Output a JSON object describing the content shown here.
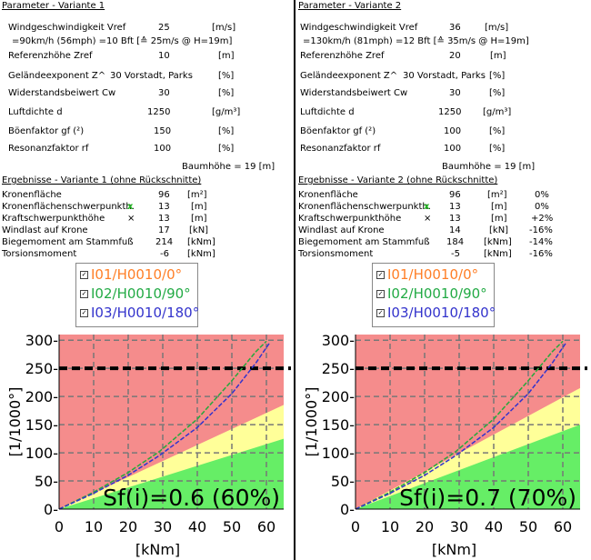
{
  "panels": [
    {
      "param_title": "Parameter - Variante 1",
      "wind_label": "Windgeschwindigkeit  Vref",
      "wind_value": "25",
      "wind_unit": "[m/s]",
      "wind_note": "=90km/h (56mph) =10 Bft [≙ 25m/s @ H=19m]",
      "ref_label": "Referenzhöhe  Zref",
      "ref_value": "10",
      "ref_unit": "[m]",
      "gelaende_label": "Geländeexponent  Z^",
      "gelaende_value": "30 Vorstadt, Parks",
      "gelaende_unit": "[%]",
      "cw_label": "Widerstandsbeiwert  Cw",
      "cw_value": "30",
      "cw_unit": "[%]",
      "luft_label": "Luftdichte  d",
      "luft_value": "1250",
      "luft_unit": "[g/m³]",
      "boe_label": "Böenfaktor  gf (²)",
      "boe_value": "150",
      "boe_unit": "[%]",
      "res_label": "Resonanzfaktor  rf",
      "res_value": "100",
      "res_unit": "[%]",
      "baumhoehe": "Baumhöhe = 19 [m]",
      "res_title": "Ergebnisse - Variante 1 (ohne Rückschnitte)",
      "results": [
        {
          "label": "Kronenfläche",
          "mark": "",
          "value": "96",
          "unit": "[m²]",
          "pct": ""
        },
        {
          "label": "Kronenflächenschwerpunkth.",
          "mark": "x",
          "value": "13",
          "unit": "[m]",
          "pct": ""
        },
        {
          "label": "Kraftschwerpunkthöhe",
          "mark": "⨯",
          "value": "13",
          "unit": "[m]",
          "pct": ""
        },
        {
          "label": "Windlast auf Krone",
          "mark": "",
          "value": "17",
          "unit": "[kN]",
          "pct": ""
        },
        {
          "label": "Biegemoment am Stammfuß",
          "mark": "",
          "value": "214",
          "unit": "[kNm]",
          "pct": ""
        },
        {
          "label": "Torsionsmoment",
          "mark": "",
          "value": "-6",
          "unit": "[kNm]",
          "pct": ""
        }
      ],
      "legend": [
        {
          "check": "✓",
          "label": "I01/H0010/0°",
          "color": "#ff7f27"
        },
        {
          "check": "✓",
          "label": "I02/H0010/90°",
          "color": "#22aa44"
        },
        {
          "check": "✓",
          "label": "I03/H0010/180°",
          "color": "#3333cc"
        }
      ],
      "chart_data": {
        "type": "line",
        "xlabel": "[kNm]",
        "ylabel": "[1/1000°]",
        "xlim": [
          0,
          65
        ],
        "ylim": [
          0,
          310
        ],
        "x_ticks": [
          "0",
          "10",
          "20",
          "30",
          "40",
          "50",
          "60"
        ],
        "y_ticks": [
          "0-",
          "50-",
          "100-",
          "150-",
          "200-",
          "250-",
          "300-"
        ],
        "threshold": 250,
        "sf_text": "Sf(i)=0.6 (60%)",
        "zones": {
          "green_edge_at_65": 125,
          "yellow_edge_at_65": 185
        },
        "series": [
          {
            "name": "I01/H0010/0°",
            "color": "#ff7f27",
            "points": [
              [
                0,
                0
              ],
              [
                10,
                30
              ],
              [
                20,
                65
              ],
              [
                29,
                102
              ],
              [
                40,
                160
              ],
              [
                50,
                228
              ],
              [
                57,
                280
              ],
              [
                60,
                298
              ]
            ]
          },
          {
            "name": "I02/H0010/90°",
            "color": "#22aa44",
            "points": [
              [
                0,
                0
              ],
              [
                10,
                30
              ],
              [
                20,
                65
              ],
              [
                29,
                102
              ],
              [
                40,
                160
              ],
              [
                50,
                228
              ],
              [
                57,
                280
              ],
              [
                60,
                298
              ]
            ]
          },
          {
            "name": "I03/H0010/180°",
            "color": "#3333cc",
            "points": [
              [
                0,
                0
              ],
              [
                10,
                28
              ],
              [
                20,
                60
              ],
              [
                29,
                95
              ],
              [
                40,
                145
              ],
              [
                50,
                205
              ],
              [
                57,
                260
              ],
              [
                61,
                296
              ]
            ]
          }
        ]
      }
    },
    {
      "param_title": "Parameter - Variante 2",
      "wind_label": "Windgeschwindigkeit  Vref",
      "wind_value": "36",
      "wind_unit": "[m/s]",
      "wind_note": "=130km/h (81mph) =12 Bft [≙ 35m/s @ H=19m]",
      "ref_label": "Referenzhöhe  Zref",
      "ref_value": "20",
      "ref_unit": "[m]",
      "gelaende_label": "Geländeexponent  Z^",
      "gelaende_value": "30 Vorstadt, Parks",
      "gelaende_unit": "[%]",
      "cw_label": "Widerstandsbeiwert  Cw",
      "cw_value": "30",
      "cw_unit": "[%]",
      "luft_label": "Luftdichte  d",
      "luft_value": "1250",
      "luft_unit": "[g/m³]",
      "boe_label": "Böenfaktor  gf (²)",
      "boe_value": "100",
      "boe_unit": "[%]",
      "res_label": "Resonanzfaktor  rf",
      "res_value": "100",
      "res_unit": "[%]",
      "baumhoehe": "Baumhöhe = 19 [m]",
      "res_title": "Ergebnisse - Variante 2 (ohne Rückschnitte)",
      "results": [
        {
          "label": "Kronenfläche",
          "mark": "",
          "value": "96",
          "unit": "[m²]",
          "pct": "0%"
        },
        {
          "label": "Kronenflächenschwerpunkth.",
          "mark": "x",
          "value": "13",
          "unit": "[m]",
          "pct": "0%"
        },
        {
          "label": "Kraftschwerpunkthöhe",
          "mark": "⨯",
          "value": "13",
          "unit": "[m]",
          "pct": "+2%"
        },
        {
          "label": "Windlast auf Krone",
          "mark": "",
          "value": "14",
          "unit": "[kN]",
          "pct": "-16%"
        },
        {
          "label": "Biegemoment am Stammfuß",
          "mark": "",
          "value": "184",
          "unit": "[kNm]",
          "pct": "-14%"
        },
        {
          "label": "Torsionsmoment",
          "mark": "",
          "value": "-5",
          "unit": "[kNm]",
          "pct": "-16%"
        }
      ],
      "legend": [
        {
          "check": "✓",
          "label": "I01/H0010/0°",
          "color": "#ff7f27"
        },
        {
          "check": "✓",
          "label": "I02/H0010/90°",
          "color": "#22aa44"
        },
        {
          "check": "✓",
          "label": "I03/H0010/180°",
          "color": "#3333cc"
        }
      ],
      "chart_data": {
        "type": "line",
        "xlabel": "[kNm]",
        "ylabel": "[1/1000°]",
        "xlim": [
          0,
          65
        ],
        "ylim": [
          0,
          310
        ],
        "x_ticks": [
          "0",
          "10",
          "20",
          "30",
          "40",
          "50",
          "60"
        ],
        "y_ticks": [
          "0-",
          "50-",
          "100-",
          "150-",
          "200-",
          "250-",
          "300-"
        ],
        "threshold": 250,
        "sf_text": "Sf(i)=0.7 (70%)",
        "zones": {
          "green_edge_at_65": 150,
          "yellow_edge_at_65": 215
        },
        "series": [
          {
            "name": "I01/H0010/0°",
            "color": "#ff7f27",
            "points": [
              [
                0,
                0
              ],
              [
                10,
                30
              ],
              [
                20,
                65
              ],
              [
                29,
                102
              ],
              [
                40,
                160
              ],
              [
                50,
                228
              ],
              [
                57,
                280
              ],
              [
                60,
                298
              ]
            ]
          },
          {
            "name": "I02/H0010/90°",
            "color": "#22aa44",
            "points": [
              [
                0,
                0
              ],
              [
                10,
                30
              ],
              [
                20,
                65
              ],
              [
                29,
                102
              ],
              [
                40,
                160
              ],
              [
                50,
                228
              ],
              [
                57,
                280
              ],
              [
                60,
                298
              ]
            ]
          },
          {
            "name": "I03/H0010/180°",
            "color": "#3333cc",
            "points": [
              [
                0,
                0
              ],
              [
                10,
                28
              ],
              [
                20,
                60
              ],
              [
                29,
                95
              ],
              [
                40,
                145
              ],
              [
                50,
                205
              ],
              [
                57,
                260
              ],
              [
                61,
                296
              ]
            ]
          }
        ]
      }
    }
  ]
}
